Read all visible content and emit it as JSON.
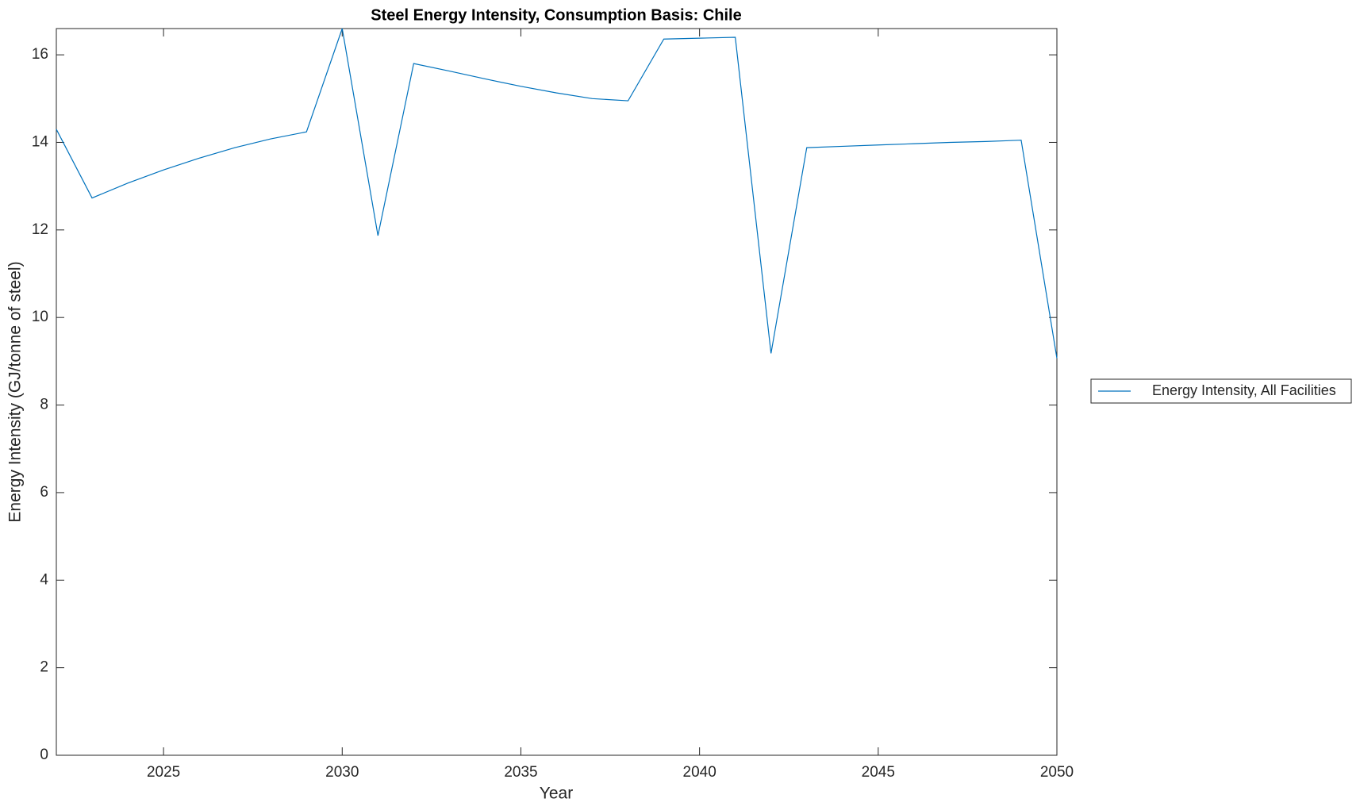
{
  "chart_data": {
    "type": "line",
    "title": "Steel Energy Intensity, Consumption Basis: Chile",
    "x_label": "Year",
    "y_label": "Energy Intensity (GJ/tonne of steel)",
    "x": [
      2022,
      2023,
      2024,
      2025,
      2026,
      2027,
      2028,
      2029,
      2030,
      2031,
      2032,
      2033,
      2034,
      2035,
      2036,
      2037,
      2038,
      2039,
      2040,
      2041,
      2042,
      2043,
      2044,
      2045,
      2046,
      2047,
      2048,
      2049,
      2050
    ],
    "series": [
      {
        "name": "Energy Intensity, All Facilities",
        "color": "#0072bd",
        "values": [
          14.3,
          12.73,
          13.07,
          13.37,
          13.64,
          13.88,
          14.08,
          14.24,
          16.6,
          11.87,
          15.8,
          15.63,
          15.45,
          15.28,
          15.13,
          15.0,
          14.95,
          16.36,
          16.38,
          16.4,
          9.18,
          13.88,
          13.91,
          13.94,
          13.97,
          14.0,
          14.02,
          14.05,
          9.07
        ]
      }
    ],
    "xlim": [
      2022,
      2050
    ],
    "xticks": [
      2025,
      2030,
      2035,
      2040,
      2045,
      2050
    ],
    "ylim": [
      0,
      16.6
    ],
    "yticks": [
      0,
      2,
      4,
      6,
      8,
      10,
      12,
      14,
      16
    ],
    "grid": false,
    "legend": "outside-right"
  }
}
